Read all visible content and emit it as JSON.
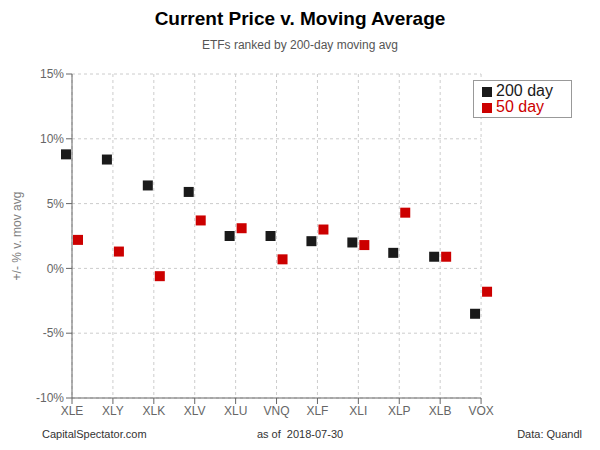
{
  "chart_data": {
    "type": "scatter",
    "title": "Current Price v. Moving Average",
    "subtitle": "ETFs ranked by 200-day moving avg",
    "ylabel": "+/- % v. mov avg",
    "categories": [
      "XLE",
      "XLY",
      "XLK",
      "XLV",
      "XLU",
      "VNQ",
      "XLF",
      "XLI",
      "XLP",
      "XLB",
      "VOX"
    ],
    "series": [
      {
        "name": "200 day",
        "color": "#1a1a1a",
        "marker": "square",
        "values": [
          8.8,
          8.4,
          6.4,
          5.9,
          2.5,
          2.5,
          2.1,
          2.0,
          1.2,
          0.9,
          -3.5
        ]
      },
      {
        "name": "50 day",
        "color": "#cc0000",
        "marker": "square",
        "values": [
          2.2,
          1.3,
          -0.6,
          3.7,
          3.1,
          0.7,
          3.0,
          1.8,
          4.3,
          0.9,
          -1.8
        ]
      }
    ],
    "ylim": [
      -10,
      15
    ],
    "yticks": [
      {
        "value": -10,
        "label": "-10%"
      },
      {
        "value": -5,
        "label": "-5%"
      },
      {
        "value": 0,
        "label": "0%"
      },
      {
        "value": 5,
        "label": "5%"
      },
      {
        "value": 10,
        "label": "10%"
      },
      {
        "value": 15,
        "label": "15%"
      }
    ],
    "grid": true,
    "legend": "upper right",
    "annotations": [
      "CapitalSpectator.com",
      "as of  2018-07-30",
      "Data: Quandl"
    ]
  }
}
